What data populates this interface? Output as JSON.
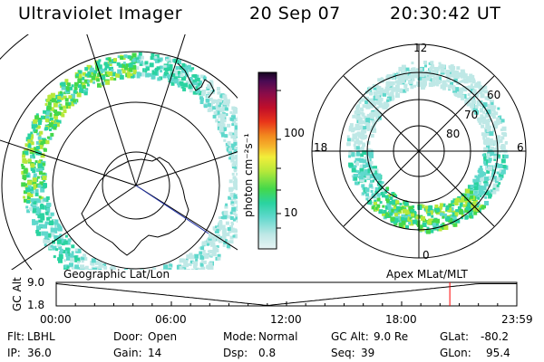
{
  "header": {
    "instrument": "Ultraviolet Imager",
    "date": "20 Sep 07",
    "time": "20:30:42 UT"
  },
  "colorbar": {
    "unit_label": "photon cm⁻²s⁻¹",
    "ticks": [
      "100",
      "10"
    ]
  },
  "mlt_plot": {
    "hour_labels": [
      "12",
      "18",
      "6",
      "0"
    ],
    "lat_labels": [
      "60",
      "70",
      "80"
    ]
  },
  "alt_panel": {
    "left_title": "Geographic Lat/Lon",
    "right_title": "Apex MLat/MLT",
    "y_label": "GC Alt",
    "y_ticks": [
      "9.0",
      "1.8"
    ],
    "x_ticks": [
      "00:00",
      "06:00",
      "12:00",
      "18:00",
      "23:59"
    ],
    "current_time_hours": 20.51,
    "marker_color": "#ff0000"
  },
  "info": {
    "row1": [
      {
        "label": "Flt:",
        "value": "LBHL"
      },
      {
        "label": "Door:",
        "value": "Open"
      },
      {
        "label": "Mode:",
        "value": "Normal"
      },
      {
        "label": "GC Alt:",
        "value": "9.0 Re"
      },
      {
        "label": "GLat:",
        "value": "-80.2"
      }
    ],
    "row2": [
      {
        "label": "IP:",
        "value": "36.0"
      },
      {
        "label": "Gain:",
        "value": "14"
      },
      {
        "label": "Dsp:",
        "value": "0.8"
      },
      {
        "label": "Seq:",
        "value": "39"
      },
      {
        "label": "GLon:",
        "value": "95.4"
      }
    ]
  },
  "colors": {
    "colorbar_stops": [
      "#e8f4f4",
      "#bfe8e6",
      "#5fd8cc",
      "#2ad3a0",
      "#44d84a",
      "#b6e83a",
      "#f2ee3a",
      "#f5b52c",
      "#f28a1e",
      "#e9351a",
      "#c00e2a",
      "#8a0c49",
      "#4a0b54",
      "#15051f"
    ]
  }
}
